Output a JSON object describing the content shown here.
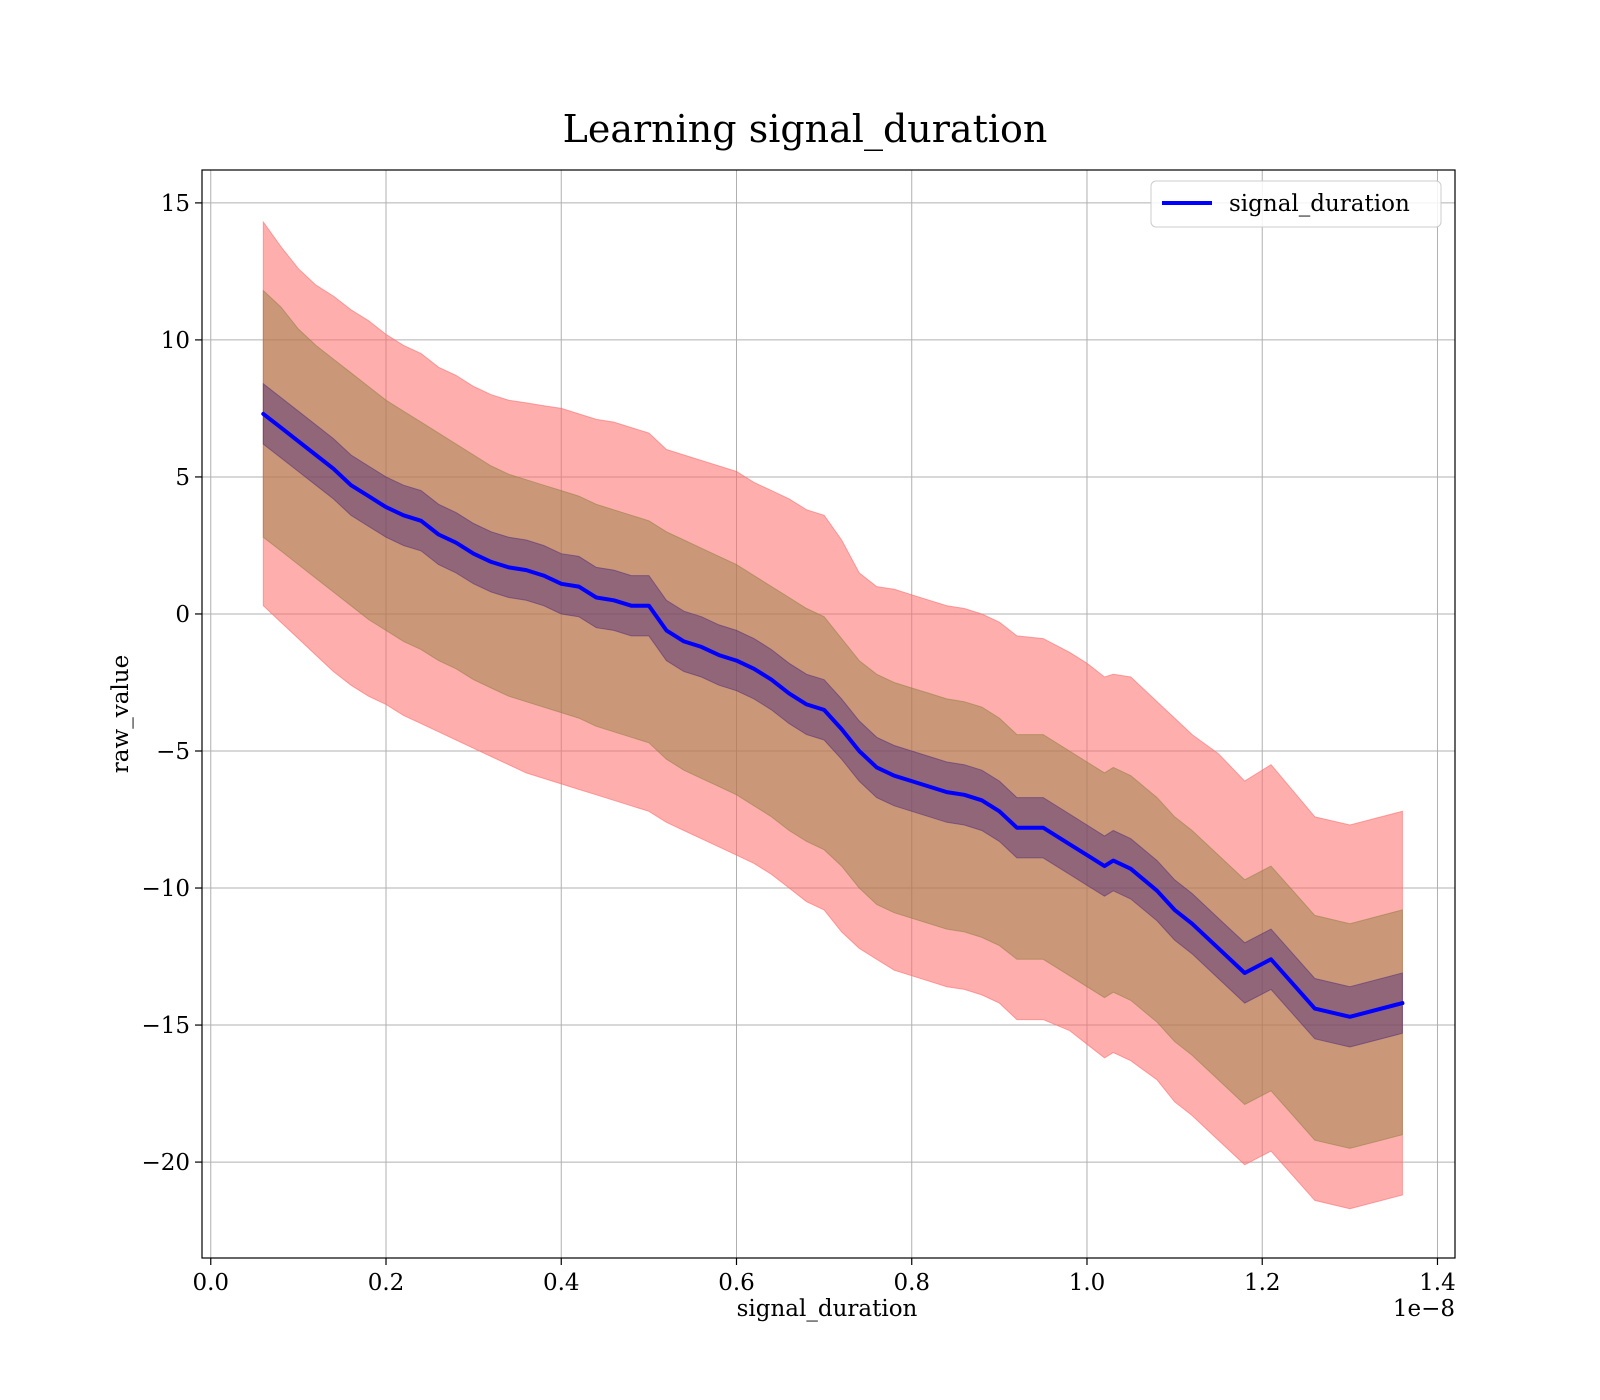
{
  "chart_data": {
    "type": "line",
    "title": "Learning signal_duration",
    "xlabel": "signal_duration",
    "ylabel": "raw_value",
    "x_offset_label": "1e−8",
    "xlim": [
      -0.01,
      1.42
    ],
    "ylim": [
      -23.5,
      16.2
    ],
    "x_ticks": [
      0.0,
      0.2,
      0.4,
      0.6,
      0.8,
      1.0,
      1.2,
      1.4
    ],
    "x_tick_labels": [
      "0.0",
      "0.2",
      "0.4",
      "0.6",
      "0.8",
      "1.0",
      "1.2",
      "1.4"
    ],
    "y_ticks": [
      15,
      10,
      5,
      0,
      -5,
      -10,
      -15,
      -20
    ],
    "y_tick_labels": [
      "15",
      "10",
      "5",
      "0",
      "−5",
      "−10",
      "−15",
      "−20"
    ],
    "grid": true,
    "legend_position": "top-right",
    "colors": {
      "line": "#0000ff",
      "outer_band": "#ff6b6b",
      "middle_band": "#8b7d3a",
      "inner_band": "#4b2a7a",
      "axes": "#000000",
      "grid": "#b0b0b0"
    },
    "series": [
      {
        "name": "signal_duration",
        "x": [
          0.06,
          0.08,
          0.1,
          0.12,
          0.14,
          0.16,
          0.18,
          0.2,
          0.22,
          0.24,
          0.26,
          0.28,
          0.3,
          0.32,
          0.34,
          0.36,
          0.38,
          0.4,
          0.42,
          0.44,
          0.46,
          0.48,
          0.5,
          0.52,
          0.54,
          0.56,
          0.58,
          0.6,
          0.62,
          0.64,
          0.66,
          0.68,
          0.7,
          0.72,
          0.74,
          0.76,
          0.78,
          0.8,
          0.82,
          0.84,
          0.86,
          0.88,
          0.9,
          0.92,
          0.95,
          0.98,
          1.0,
          1.02,
          1.03,
          1.05,
          1.08,
          1.1,
          1.12,
          1.15,
          1.18,
          1.21,
          1.26,
          1.3,
          1.36
        ],
        "y": [
          7.3,
          6.8,
          6.3,
          5.8,
          5.3,
          4.7,
          4.3,
          3.9,
          3.6,
          3.4,
          2.9,
          2.6,
          2.2,
          1.9,
          1.7,
          1.6,
          1.4,
          1.1,
          1.0,
          0.6,
          0.5,
          0.3,
          0.3,
          -0.6,
          -1.0,
          -1.2,
          -1.5,
          -1.7,
          -2.0,
          -2.4,
          -2.9,
          -3.3,
          -3.5,
          -4.2,
          -5.0,
          -5.6,
          -5.9,
          -6.1,
          -6.3,
          -6.5,
          -6.6,
          -6.8,
          -7.2,
          -7.8,
          -7.8,
          -8.4,
          -8.8,
          -9.2,
          -9.0,
          -9.3,
          -10.1,
          -10.8,
          -11.3,
          -12.2,
          -13.1,
          -12.6,
          -14.4,
          -14.7,
          -14.2
        ],
        "outer_band": {
          "upper": [
            14.3,
            13.4,
            12.6,
            12.0,
            11.6,
            11.1,
            10.7,
            10.2,
            9.8,
            9.5,
            9.0,
            8.7,
            8.3,
            8.0,
            7.8,
            7.7,
            7.6,
            7.5,
            7.3,
            7.1,
            7.0,
            6.8,
            6.6,
            6.0,
            5.8,
            5.6,
            5.4,
            5.2,
            4.8,
            4.5,
            4.2,
            3.8,
            3.6,
            2.7,
            1.5,
            1.0,
            0.9,
            0.7,
            0.5,
            0.3,
            0.2,
            0.0,
            -0.3,
            -0.8,
            -0.9,
            -1.4,
            -1.8,
            -2.3,
            -2.2,
            -2.3,
            -3.2,
            -3.8,
            -4.4,
            -5.1,
            -6.1,
            -5.5,
            -7.4,
            -7.7,
            -7.2
          ],
          "lower": [
            0.3,
            -0.3,
            -0.9,
            -1.5,
            -2.1,
            -2.6,
            -3.0,
            -3.3,
            -3.7,
            -4.0,
            -4.3,
            -4.6,
            -4.9,
            -5.2,
            -5.5,
            -5.8,
            -6.0,
            -6.2,
            -6.4,
            -6.6,
            -6.8,
            -7.0,
            -7.2,
            -7.6,
            -7.9,
            -8.2,
            -8.5,
            -8.8,
            -9.1,
            -9.5,
            -10.0,
            -10.5,
            -10.8,
            -11.6,
            -12.2,
            -12.6,
            -13.0,
            -13.2,
            -13.4,
            -13.6,
            -13.7,
            -13.9,
            -14.2,
            -14.8,
            -14.8,
            -15.2,
            -15.7,
            -16.2,
            -16.0,
            -16.3,
            -17.0,
            -17.8,
            -18.3,
            -19.2,
            -20.1,
            -19.6,
            -21.4,
            -21.7,
            -21.2
          ]
        },
        "middle_band": {
          "upper": [
            11.8,
            11.2,
            10.4,
            9.8,
            9.3,
            8.8,
            8.3,
            7.8,
            7.4,
            7.0,
            6.6,
            6.2,
            5.8,
            5.4,
            5.1,
            4.9,
            4.7,
            4.5,
            4.3,
            4.0,
            3.8,
            3.6,
            3.4,
            3.0,
            2.7,
            2.4,
            2.1,
            1.8,
            1.4,
            1.0,
            0.6,
            0.2,
            -0.1,
            -0.9,
            -1.7,
            -2.2,
            -2.5,
            -2.7,
            -2.9,
            -3.1,
            -3.2,
            -3.4,
            -3.8,
            -4.4,
            -4.4,
            -5.0,
            -5.4,
            -5.8,
            -5.6,
            -5.9,
            -6.7,
            -7.4,
            -7.9,
            -8.8,
            -9.7,
            -9.2,
            -11.0,
            -11.3,
            -10.8
          ],
          "lower": [
            2.8,
            2.3,
            1.8,
            1.3,
            0.8,
            0.3,
            -0.2,
            -0.6,
            -1.0,
            -1.3,
            -1.7,
            -2.0,
            -2.4,
            -2.7,
            -3.0,
            -3.2,
            -3.4,
            -3.6,
            -3.8,
            -4.1,
            -4.3,
            -4.5,
            -4.7,
            -5.3,
            -5.7,
            -6.0,
            -6.3,
            -6.6,
            -7.0,
            -7.4,
            -7.9,
            -8.3,
            -8.6,
            -9.2,
            -10.0,
            -10.6,
            -10.9,
            -11.1,
            -11.3,
            -11.5,
            -11.6,
            -11.8,
            -12.1,
            -12.6,
            -12.6,
            -13.2,
            -13.6,
            -14.0,
            -13.8,
            -14.1,
            -14.9,
            -15.6,
            -16.1,
            -17.0,
            -17.9,
            -17.4,
            -19.2,
            -19.5,
            -19.0
          ]
        },
        "inner_band": {
          "upper": [
            8.4,
            7.9,
            7.4,
            6.9,
            6.4,
            5.8,
            5.4,
            5.0,
            4.7,
            4.5,
            4.0,
            3.7,
            3.3,
            3.0,
            2.8,
            2.7,
            2.5,
            2.2,
            2.1,
            1.7,
            1.6,
            1.4,
            1.4,
            0.5,
            0.1,
            -0.1,
            -0.4,
            -0.6,
            -0.9,
            -1.3,
            -1.8,
            -2.2,
            -2.4,
            -3.1,
            -3.9,
            -4.5,
            -4.8,
            -5.0,
            -5.2,
            -5.4,
            -5.5,
            -5.7,
            -6.1,
            -6.7,
            -6.7,
            -7.3,
            -7.7,
            -8.1,
            -7.9,
            -8.2,
            -9.0,
            -9.7,
            -10.2,
            -11.1,
            -12.0,
            -11.5,
            -13.3,
            -13.6,
            -13.1
          ],
          "lower": [
            6.2,
            5.7,
            5.2,
            4.7,
            4.2,
            3.6,
            3.2,
            2.8,
            2.5,
            2.3,
            1.8,
            1.5,
            1.1,
            0.8,
            0.6,
            0.5,
            0.3,
            0.0,
            -0.1,
            -0.5,
            -0.6,
            -0.8,
            -0.8,
            -1.7,
            -2.1,
            -2.3,
            -2.6,
            -2.8,
            -3.1,
            -3.5,
            -4.0,
            -4.4,
            -4.6,
            -5.3,
            -6.1,
            -6.7,
            -7.0,
            -7.2,
            -7.4,
            -7.6,
            -7.7,
            -7.9,
            -8.3,
            -8.9,
            -8.9,
            -9.5,
            -9.9,
            -10.3,
            -10.1,
            -10.4,
            -11.2,
            -11.9,
            -12.4,
            -13.3,
            -14.2,
            -13.7,
            -15.5,
            -15.8,
            -15.3
          ]
        }
      }
    ]
  }
}
